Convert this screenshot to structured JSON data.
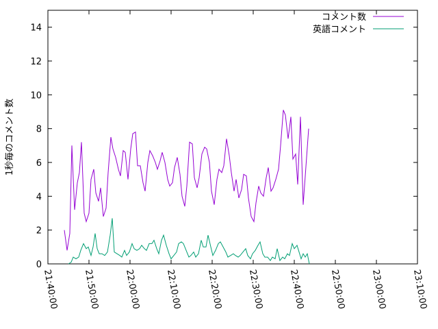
{
  "chart_data": {
    "type": "line",
    "ylabel": "1秒毎のコメント数",
    "xlabel": "",
    "ylim": [
      0,
      15
    ],
    "xlim": [
      "21:40:00",
      "23:10:00"
    ],
    "yticks": [
      "0",
      "2",
      "4",
      "6",
      "8",
      "10",
      "12",
      "14"
    ],
    "xticks": [
      "21:40:00",
      "21:50:00",
      "22:00:00",
      "22:10:00",
      "22:20:00",
      "22:30:00",
      "22:40:00",
      "22:50:00",
      "23:00:00",
      "23:10:00"
    ],
    "grid": false,
    "legend": "top-right",
    "series": [
      {
        "name": "コメント数",
        "color": "#9400d3",
        "points": [
          [
            "21:44:00",
            2.0
          ],
          [
            "21:44:40",
            0.8
          ],
          [
            "21:45:20",
            1.8
          ],
          [
            "21:45:50",
            7.0
          ],
          [
            "21:46:30",
            3.2
          ],
          [
            "21:47:10",
            4.8
          ],
          [
            "21:47:40",
            5.4
          ],
          [
            "21:48:10",
            7.2
          ],
          [
            "21:48:50",
            3.0
          ],
          [
            "21:49:20",
            2.5
          ],
          [
            "21:50:00",
            3.0
          ],
          [
            "21:50:30",
            5.0
          ],
          [
            "21:51:10",
            5.6
          ],
          [
            "21:51:40",
            4.2
          ],
          [
            "21:52:20",
            3.7
          ],
          [
            "21:52:50",
            4.5
          ],
          [
            "21:53:30",
            2.8
          ],
          [
            "21:54:10",
            3.3
          ],
          [
            "21:54:40",
            5.4
          ],
          [
            "21:55:20",
            7.5
          ],
          [
            "21:55:50",
            6.8
          ],
          [
            "21:56:30",
            6.3
          ],
          [
            "21:57:10",
            5.6
          ],
          [
            "21:57:40",
            5.2
          ],
          [
            "21:58:20",
            6.7
          ],
          [
            "21:58:50",
            6.6
          ],
          [
            "21:59:30",
            5.0
          ],
          [
            "22:00:10",
            6.8
          ],
          [
            "22:00:40",
            7.7
          ],
          [
            "22:01:20",
            7.8
          ],
          [
            "22:01:50",
            5.8
          ],
          [
            "22:02:30",
            5.8
          ],
          [
            "22:03:10",
            4.8
          ],
          [
            "22:03:40",
            4.3
          ],
          [
            "22:04:20",
            6.0
          ],
          [
            "22:04:50",
            6.7
          ],
          [
            "22:05:30",
            6.4
          ],
          [
            "22:06:10",
            6.0
          ],
          [
            "22:06:40",
            5.6
          ],
          [
            "22:07:20",
            6.1
          ],
          [
            "22:07:50",
            6.6
          ],
          [
            "22:08:30",
            6.0
          ],
          [
            "22:09:10",
            5.0
          ],
          [
            "22:09:40",
            4.6
          ],
          [
            "22:10:20",
            4.8
          ],
          [
            "22:10:50",
            5.7
          ],
          [
            "22:11:30",
            6.3
          ],
          [
            "22:12:10",
            5.3
          ],
          [
            "22:12:40",
            4.0
          ],
          [
            "22:13:20",
            3.4
          ],
          [
            "22:13:50",
            4.6
          ],
          [
            "22:14:30",
            7.2
          ],
          [
            "22:15:10",
            7.1
          ],
          [
            "22:15:40",
            5.1
          ],
          [
            "22:16:20",
            4.5
          ],
          [
            "22:16:50",
            5.1
          ],
          [
            "22:17:30",
            6.5
          ],
          [
            "22:18:10",
            6.9
          ],
          [
            "22:18:40",
            6.8
          ],
          [
            "22:19:20",
            6.0
          ],
          [
            "22:19:50",
            4.3
          ],
          [
            "22:20:30",
            3.5
          ],
          [
            "22:21:10",
            5.0
          ],
          [
            "22:21:40",
            5.6
          ],
          [
            "22:22:20",
            5.4
          ],
          [
            "22:22:50",
            5.8
          ],
          [
            "22:23:30",
            7.4
          ],
          [
            "22:24:10",
            6.4
          ],
          [
            "22:24:40",
            5.4
          ],
          [
            "22:25:20",
            4.3
          ],
          [
            "22:25:50",
            5.0
          ],
          [
            "22:26:30",
            3.9
          ],
          [
            "22:27:10",
            4.4
          ],
          [
            "22:27:40",
            5.3
          ],
          [
            "22:28:20",
            5.2
          ],
          [
            "22:28:50",
            3.9
          ],
          [
            "22:29:30",
            2.8
          ],
          [
            "22:30:10",
            2.5
          ],
          [
            "22:30:40",
            3.6
          ],
          [
            "22:31:20",
            4.6
          ],
          [
            "22:31:50",
            4.2
          ],
          [
            "22:32:30",
            4.0
          ],
          [
            "22:33:10",
            5.1
          ],
          [
            "22:33:40",
            5.7
          ],
          [
            "22:34:20",
            4.3
          ],
          [
            "22:34:50",
            4.5
          ],
          [
            "22:35:30",
            5.0
          ],
          [
            "22:36:10",
            5.6
          ],
          [
            "22:36:40",
            7.0
          ],
          [
            "22:37:20",
            9.1
          ],
          [
            "22:37:50",
            8.8
          ],
          [
            "22:38:30",
            7.4
          ],
          [
            "22:39:10",
            8.7
          ],
          [
            "22:39:40",
            6.2
          ],
          [
            "22:40:20",
            6.5
          ],
          [
            "22:40:50",
            4.7
          ],
          [
            "22:41:30",
            8.7
          ],
          [
            "22:42:10",
            3.5
          ],
          [
            "22:43:30",
            8.0
          ]
        ]
      },
      {
        "name": "英語コメント",
        "color": "#009e73",
        "points": [
          [
            "21:45:00",
            0.0
          ],
          [
            "21:45:40",
            0.1
          ],
          [
            "21:46:10",
            0.4
          ],
          [
            "21:46:50",
            0.3
          ],
          [
            "21:47:30",
            0.4
          ],
          [
            "21:48:00",
            0.8
          ],
          [
            "21:48:40",
            1.2
          ],
          [
            "21:49:20",
            0.9
          ],
          [
            "21:49:50",
            1.0
          ],
          [
            "21:50:30",
            0.5
          ],
          [
            "21:51:00",
            1.0
          ],
          [
            "21:51:30",
            1.8
          ],
          [
            "21:52:00",
            0.9
          ],
          [
            "21:52:30",
            0.6
          ],
          [
            "21:53:10",
            0.6
          ],
          [
            "21:53:50",
            0.5
          ],
          [
            "21:54:30",
            0.7
          ],
          [
            "21:55:10",
            1.7
          ],
          [
            "21:55:40",
            2.7
          ],
          [
            "21:56:10",
            0.7
          ],
          [
            "21:56:50",
            0.6
          ],
          [
            "21:57:30",
            0.5
          ],
          [
            "21:58:00",
            0.4
          ],
          [
            "21:58:40",
            0.8
          ],
          [
            "21:59:10",
            0.5
          ],
          [
            "21:59:50",
            0.7
          ],
          [
            "22:00:30",
            1.2
          ],
          [
            "22:01:00",
            0.9
          ],
          [
            "22:01:40",
            0.8
          ],
          [
            "22:02:20",
            0.9
          ],
          [
            "22:02:50",
            1.1
          ],
          [
            "22:03:30",
            0.9
          ],
          [
            "22:04:00",
            0.8
          ],
          [
            "22:04:40",
            1.2
          ],
          [
            "22:05:20",
            1.2
          ],
          [
            "22:05:50",
            1.4
          ],
          [
            "22:06:30",
            0.9
          ],
          [
            "22:07:00",
            0.6
          ],
          [
            "22:07:40",
            1.4
          ],
          [
            "22:08:10",
            1.7
          ],
          [
            "22:08:50",
            1.1
          ],
          [
            "22:09:30",
            0.6
          ],
          [
            "22:10:00",
            0.3
          ],
          [
            "22:10:40",
            0.5
          ],
          [
            "22:11:20",
            0.7
          ],
          [
            "22:11:50",
            1.2
          ],
          [
            "22:12:30",
            1.3
          ],
          [
            "22:13:00",
            1.2
          ],
          [
            "22:13:40",
            0.8
          ],
          [
            "22:14:20",
            0.4
          ],
          [
            "22:14:50",
            0.5
          ],
          [
            "22:15:30",
            0.7
          ],
          [
            "22:16:00",
            0.4
          ],
          [
            "22:16:40",
            0.6
          ],
          [
            "22:17:20",
            1.4
          ],
          [
            "22:17:50",
            1.0
          ],
          [
            "22:18:30",
            1.0
          ],
          [
            "22:19:00",
            1.7
          ],
          [
            "22:19:40",
            1.0
          ],
          [
            "22:20:10",
            0.5
          ],
          [
            "22:20:50",
            0.8
          ],
          [
            "22:21:30",
            1.2
          ],
          [
            "22:22:00",
            1.3
          ],
          [
            "22:22:40",
            1.0
          ],
          [
            "22:23:20",
            0.7
          ],
          [
            "22:23:50",
            0.4
          ],
          [
            "22:24:30",
            0.5
          ],
          [
            "22:25:10",
            0.6
          ],
          [
            "22:25:40",
            0.5
          ],
          [
            "22:26:20",
            0.4
          ],
          [
            "22:26:50",
            0.5
          ],
          [
            "22:27:30",
            0.7
          ],
          [
            "22:28:10",
            0.9
          ],
          [
            "22:28:40",
            0.5
          ],
          [
            "22:29:20",
            0.3
          ],
          [
            "22:29:50",
            0.6
          ],
          [
            "22:30:30",
            0.8
          ],
          [
            "22:31:10",
            1.1
          ],
          [
            "22:31:40",
            1.3
          ],
          [
            "22:32:20",
            0.6
          ],
          [
            "22:32:50",
            0.4
          ],
          [
            "22:33:30",
            0.4
          ],
          [
            "22:34:10",
            0.2
          ],
          [
            "22:34:40",
            0.4
          ],
          [
            "22:35:20",
            0.3
          ],
          [
            "22:35:50",
            0.9
          ],
          [
            "22:36:30",
            0.2
          ],
          [
            "22:37:10",
            0.4
          ],
          [
            "22:37:40",
            0.3
          ],
          [
            "22:38:20",
            0.6
          ],
          [
            "22:38:50",
            0.5
          ],
          [
            "22:39:30",
            1.2
          ],
          [
            "22:40:00",
            0.9
          ],
          [
            "22:40:40",
            1.1
          ],
          [
            "22:41:10",
            0.7
          ],
          [
            "22:41:40",
            0.3
          ],
          [
            "22:42:10",
            0.6
          ],
          [
            "22:42:40",
            0.4
          ],
          [
            "22:43:10",
            0.6
          ],
          [
            "22:43:40",
            0.0
          ]
        ]
      }
    ]
  }
}
